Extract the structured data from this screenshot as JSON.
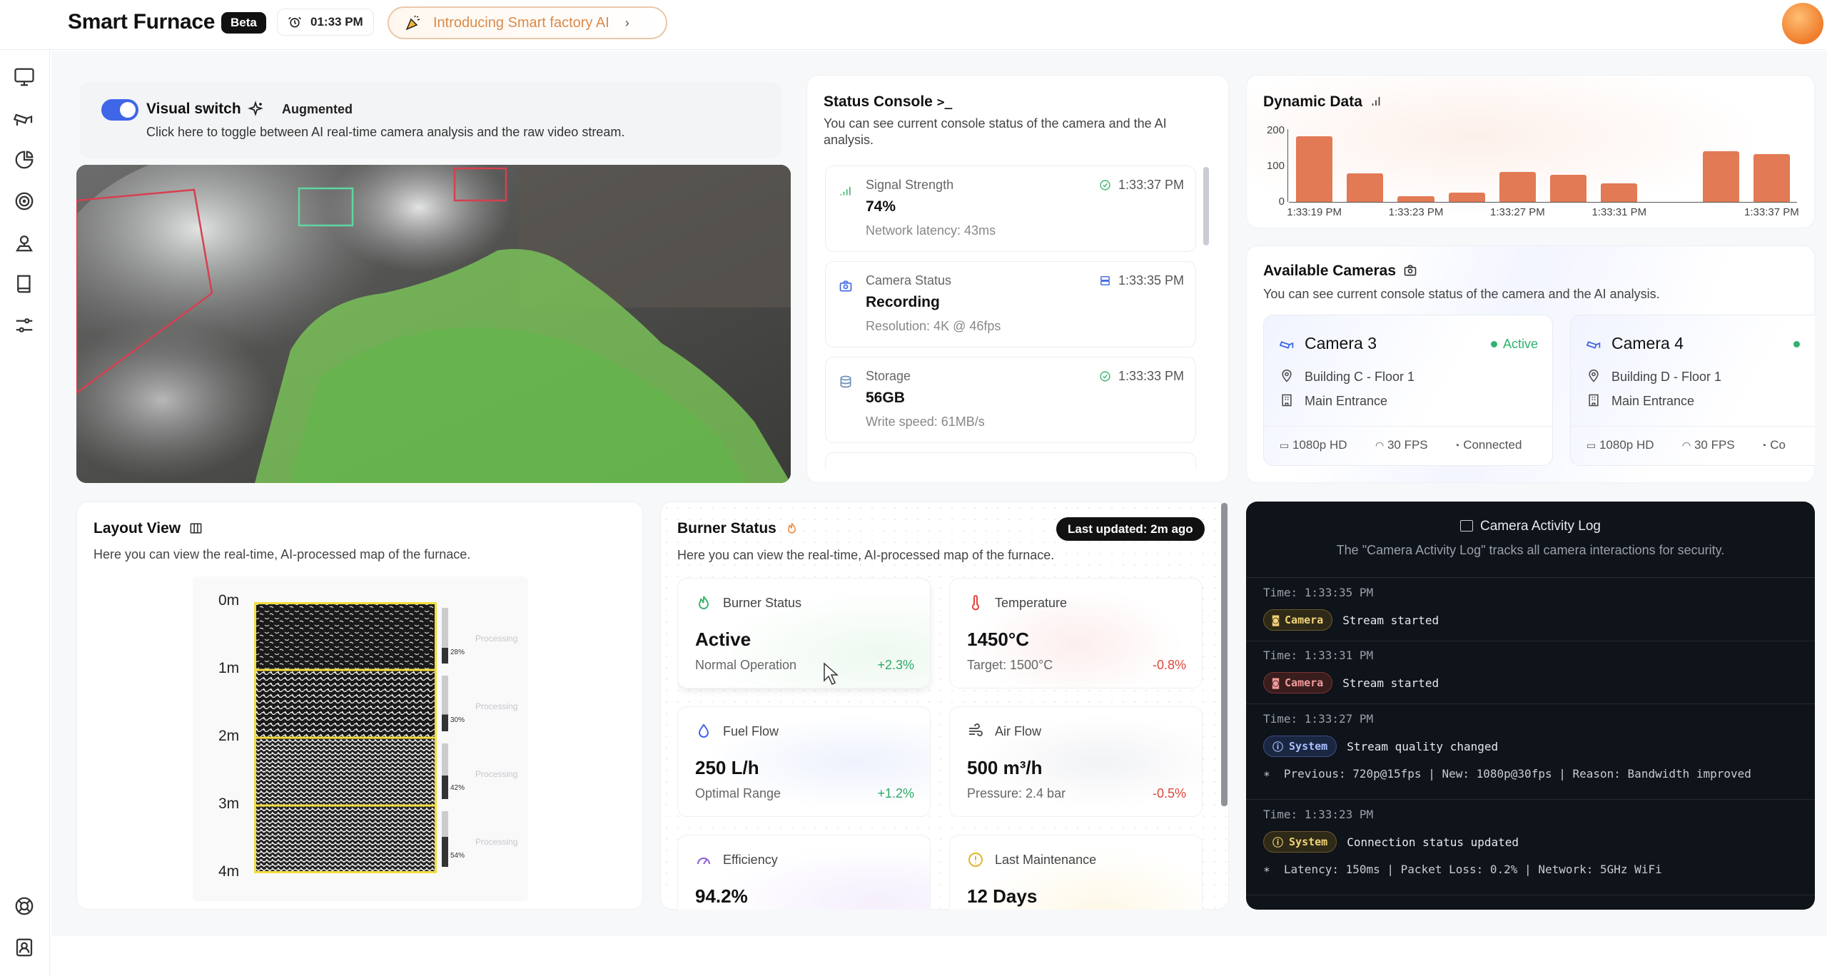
{
  "header": {
    "title": "Smart Furnace",
    "badge": "Beta",
    "time": "01:33 PM",
    "promo": "Introducing Smart factory AI"
  },
  "sidebar": {
    "items": [
      "monitor-icon",
      "camera-icon",
      "pie-chart-icon",
      "target-icon",
      "location-pin-icon",
      "book-icon",
      "sliders-icon",
      "help-icon",
      "contacts-icon"
    ]
  },
  "visual": {
    "switch_label": "Visual switch",
    "mode": "Augmented",
    "description": "Click here to toggle between AI real-time camera analysis and the raw video stream.",
    "switch_on": true
  },
  "console": {
    "title": "Status Console",
    "description": "You can see current console status of the camera and the AI analysis.",
    "items": [
      {
        "label": "Signal Strength",
        "value": "74%",
        "sub": "Network latency: 43ms",
        "time": "1:33:37 PM",
        "icon": "signal-icon"
      },
      {
        "label": "Camera Status",
        "value": "Recording",
        "sub": "Resolution: 4K @ 46fps",
        "time": "1:33:35 PM",
        "icon": "camera-icon"
      },
      {
        "label": "Storage",
        "value": "56GB",
        "sub": "Write speed: 61MB/s",
        "time": "1:33:33 PM",
        "icon": "database-icon"
      }
    ]
  },
  "dynamic": {
    "title": "Dynamic Data"
  },
  "chart_data": {
    "type": "bar",
    "title": "Dynamic Data",
    "x_ticks": [
      "1:33:19 PM",
      "1:33:23 PM",
      "1:33:27 PM",
      "1:33:31 PM",
      "1:33:37 PM"
    ],
    "y_ticks": [
      "200",
      "100",
      "0"
    ],
    "ylim": [
      0,
      200
    ],
    "values": [
      185,
      80,
      17,
      27,
      85,
      76,
      53,
      0,
      143,
      135
    ],
    "grid": false,
    "color": "#e27a55"
  },
  "cameras": {
    "title": "Available Cameras",
    "description": "You can see current console status of the camera and the AI analysis.",
    "items": [
      {
        "name": "Camera 3",
        "status": "Active",
        "location": "Building C - Floor 1",
        "entrance": "Main Entrance",
        "resolution": "1080p HD",
        "fps": "30 FPS",
        "connection": "Connected"
      },
      {
        "name": "Camera 4",
        "status": "",
        "location": "Building D - Floor 1",
        "entrance": "Main Entrance",
        "resolution": "1080p HD",
        "fps": "30 FPS",
        "connection": "Co"
      }
    ]
  },
  "layout_view": {
    "title": "Layout View",
    "description": "Here you can view the real-time, AI-processed map of the furnace.",
    "depths": [
      "0m",
      "1m",
      "2m",
      "3m",
      "4m"
    ],
    "sections": [
      {
        "percent": "28%",
        "state": "Processing"
      },
      {
        "percent": "30%",
        "state": "Processing"
      },
      {
        "percent": "42%",
        "state": "Processing"
      },
      {
        "percent": "54%",
        "state": "Processing"
      }
    ]
  },
  "burner": {
    "title": "Burner Status",
    "description": "Here you can view the real-time, AI-processed map of the furnace.",
    "updated": "Last updated: 2m ago",
    "metrics": [
      {
        "label": "Burner Status",
        "value": "Active",
        "sub": "Normal Operation",
        "delta": "+2.3%"
      },
      {
        "label": "Temperature",
        "value": "1450°C",
        "sub": "Target: 1500°C",
        "delta": "-0.8%"
      },
      {
        "label": "Fuel Flow",
        "value": "250 L/h",
        "sub": "Optimal Range",
        "delta": "+1.2%"
      },
      {
        "label": "Air Flow",
        "value": "500 m³/h",
        "sub": "Pressure: 2.4 bar",
        "delta": "-0.5%"
      },
      {
        "label": "Efficiency",
        "value": "94.2%",
        "sub": "",
        "delta": ""
      },
      {
        "label": "Last Maintenance",
        "value": "12 Days",
        "sub": "",
        "delta": ""
      }
    ]
  },
  "activity_log": {
    "title": "Camera Activity Log",
    "description": "The \"Camera Activity Log\" tracks all camera interactions for security.",
    "entries": [
      {
        "time": "Time: 1:33:35 PM",
        "tag": "Camera",
        "message": "Stream started",
        "detail": ""
      },
      {
        "time": "Time: 1:33:31 PM",
        "tag": "Camera",
        "message": "Stream started",
        "detail": ""
      },
      {
        "time": "Time: 1:33:27 PM",
        "tag": "System",
        "message": "Stream quality changed",
        "detail": "Previous: 720p@15fps | New: 1080p@30fps | Reason: Bandwidth improved"
      },
      {
        "time": "Time: 1:33:23 PM",
        "tag": "System",
        "message": "Connection status updated",
        "detail": "Latency: 150ms | Packet Loss: 0.2% | Network: 5GHz WiFi"
      }
    ]
  }
}
